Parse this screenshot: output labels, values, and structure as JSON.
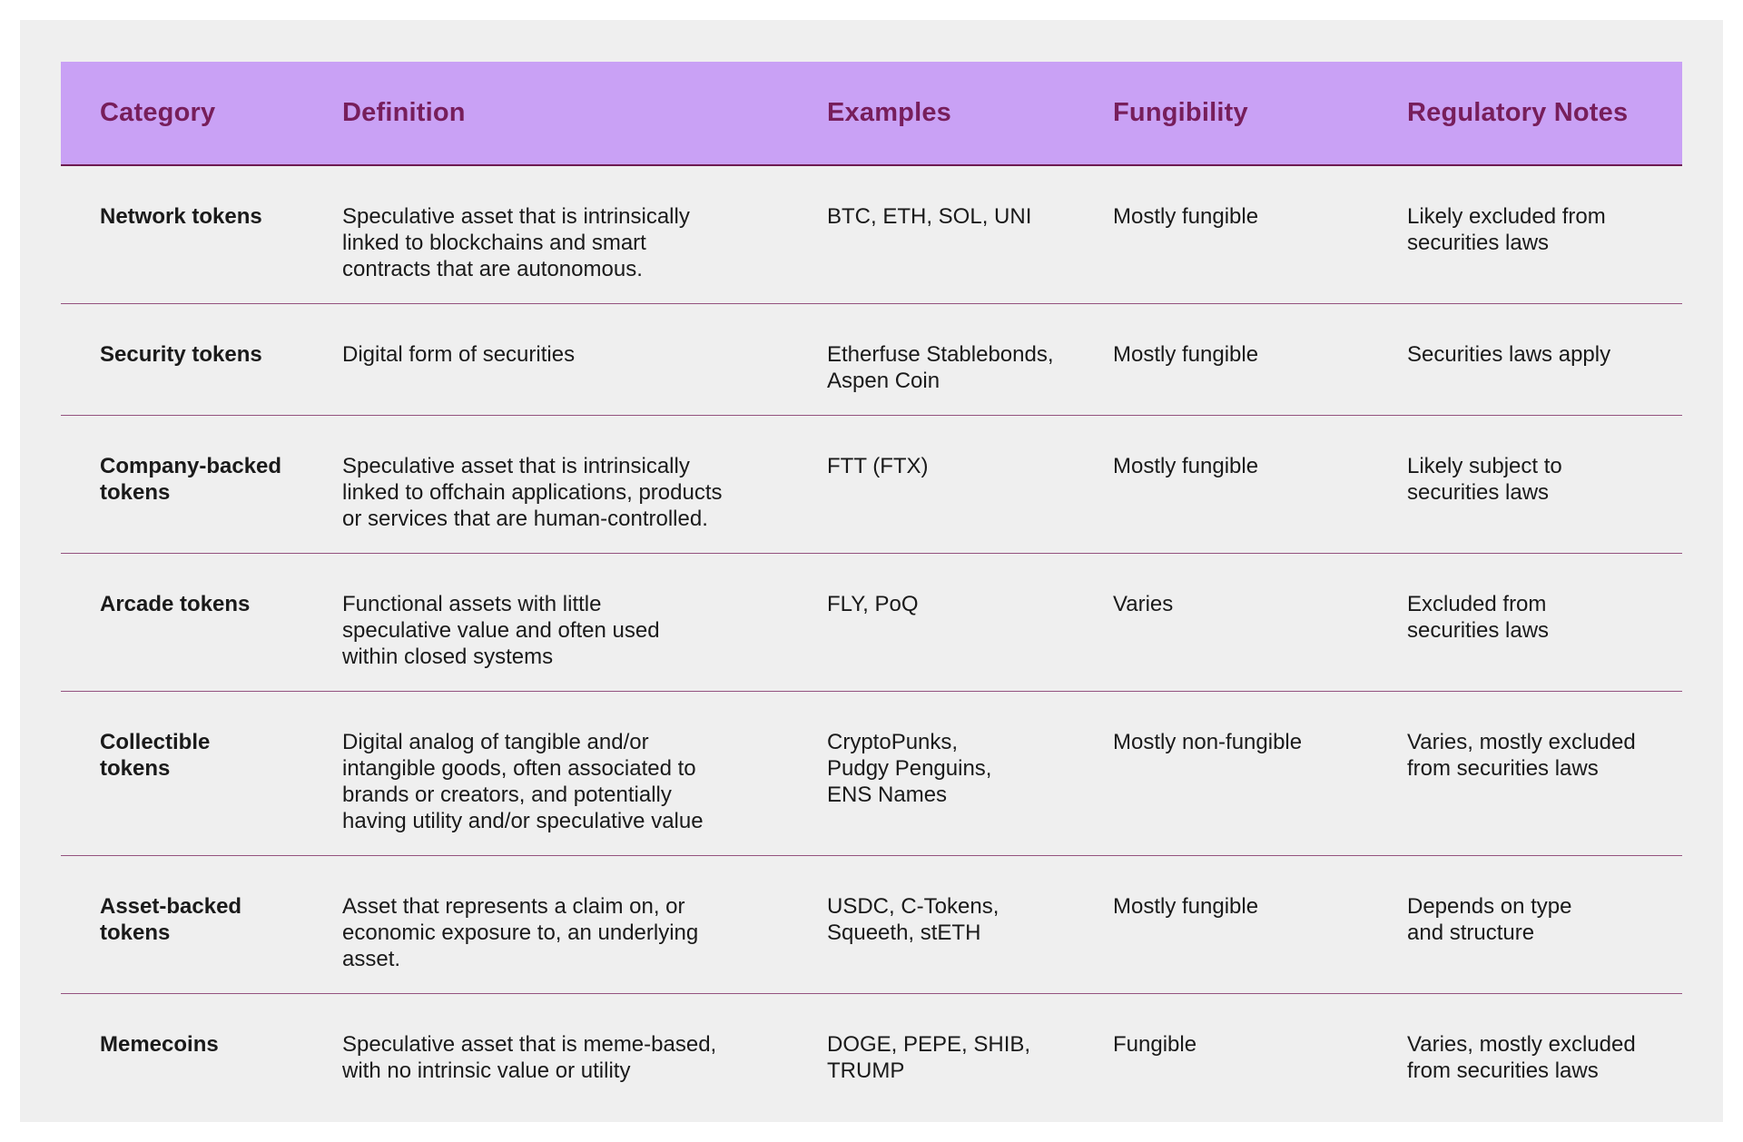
{
  "page": {
    "background_color": "#ffffff",
    "panel_background_color": "#efefef"
  },
  "table": {
    "title": "Token categories comparison table",
    "header_background_color": "#c9a1f5",
    "header_text_color": "#771e5b",
    "header_border_color": "#6d1b51",
    "row_separator_color": "#94527f",
    "body_text_color": "#1a1a1a",
    "headers": [
      "Category",
      "Definition",
      "Examples",
      "Fungibility",
      "Regulatory Notes"
    ],
    "rows": [
      {
        "category": "Network tokens",
        "definition": "Speculative asset that is intrinsically\nlinked to blockchains and smart\ncontracts that are autonomous.",
        "examples": "BTC, ETH, SOL, UNI",
        "fungibility": "Mostly fungible",
        "regulatory_notes": "Likely excluded from\nsecurities laws"
      },
      {
        "category": "Security tokens",
        "definition": "Digital form of securities",
        "examples": "Etherfuse Stablebonds,\nAspen Coin",
        "fungibility": "Mostly fungible",
        "regulatory_notes": "Securities laws apply"
      },
      {
        "category": "Company-backed\ntokens",
        "definition": "Speculative asset that is intrinsically\nlinked to offchain applications, products\nor services that are human-controlled.",
        "examples": "FTT (FTX)",
        "fungibility": "Mostly fungible",
        "regulatory_notes": "Likely subject to\nsecurities laws"
      },
      {
        "category": "Arcade tokens",
        "definition": "Functional assets with little\nspeculative value and often used\nwithin closed systems",
        "examples": "FLY, PoQ",
        "fungibility": "Varies",
        "regulatory_notes": "Excluded from\nsecurities laws"
      },
      {
        "category": "Collectible\ntokens",
        "definition": "Digital analog of tangible and/or\nintangible goods, often associated to\nbrands or creators, and potentially\nhaving utility and/or speculative value",
        "examples": "CryptoPunks,\nPudgy Penguins,\nENS Names",
        "fungibility": "Mostly non-fungible",
        "regulatory_notes": "Varies, mostly excluded\nfrom securities laws"
      },
      {
        "category": "Asset-backed\ntokens",
        "definition": "Asset that represents a claim on, or\neconomic exposure to, an underlying\nasset.",
        "examples": "USDC, C-Tokens,\nSqueeth, stETH",
        "fungibility": "Mostly fungible",
        "regulatory_notes": "Depends on type\nand structure"
      },
      {
        "category": "Memecoins",
        "definition": "Speculative asset that is meme-based,\nwith no intrinsic value or utility",
        "examples": "DOGE, PEPE, SHIB,\nTRUMP",
        "fungibility": "Fungible",
        "regulatory_notes": "Varies, mostly excluded\nfrom securities laws"
      }
    ]
  }
}
